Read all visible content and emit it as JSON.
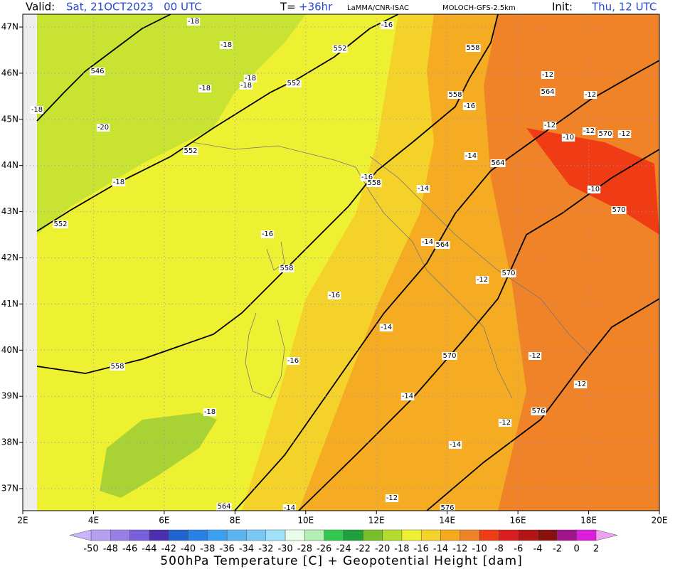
{
  "header": {
    "valid_label": "Valid:",
    "valid_time": "Sat, 21OCT2023   00 UTC",
    "lead_label": "T=",
    "lead": "+36hr",
    "institution": "LaMMA/CNR-ISAC",
    "model": "MOLOCH-GFS-2.5km",
    "init_label": "Init:",
    "init_time": "Thu, 12 UTC"
  },
  "map": {
    "lon_labels": [
      "2E",
      "4E",
      "6E",
      "8E",
      "10E",
      "12E",
      "14E",
      "16E",
      "18E",
      "20E"
    ],
    "lat_labels": [
      "47N",
      "46N",
      "45N",
      "44N",
      "43N",
      "42N",
      "41N",
      "40N",
      "39N",
      "38N",
      "37N"
    ],
    "contour_labels": [
      "-18",
      "-18",
      "-18",
      "-18",
      "-18",
      "546",
      "-18",
      "-20",
      "552",
      "-18",
      "552",
      "-16",
      "552",
      "558",
      "552",
      "558",
      "-16",
      "-14",
      "564",
      "-16",
      "558",
      "-14",
      "-16",
      "-14",
      "564",
      "558",
      "-16",
      "-12",
      "570",
      "-14",
      "570",
      "-12",
      "-16",
      "558",
      "-12",
      "-14",
      "-18",
      "576",
      "-12",
      "-14",
      "-12",
      "564",
      "-14",
      "576",
      "-12",
      "564",
      "-12",
      "-12",
      "-10",
      "-12",
      "570",
      "-12",
      "-10",
      "570"
    ]
  },
  "colorbar": {
    "title": "500hPa Temperature [C] + Geopotential Height [dam]",
    "ticks": [
      -50,
      -48,
      -46,
      -44,
      -42,
      -40,
      -38,
      -36,
      -34,
      -32,
      -30,
      -28,
      -26,
      -24,
      -22,
      -20,
      -18,
      -16,
      -14,
      -12,
      -10,
      -8,
      -6,
      -4,
      -2,
      0,
      2
    ],
    "colors": [
      "#b4a0f0",
      "#9680e6",
      "#7860dc",
      "#4b2fb0",
      "#1e64d2",
      "#2882e6",
      "#3ca0f0",
      "#5ab4f0",
      "#78c8f5",
      "#a0e1fa",
      "#e6ffe6",
      "#b4f0b4",
      "#32c850",
      "#1ea03c",
      "#78be28",
      "#b4dc2d",
      "#eef032",
      "#f5d22a",
      "#f5aa1e",
      "#f08228",
      "#f03c14",
      "#dc1e1e",
      "#b41414",
      "#8c0f0f",
      "#a0148c",
      "#dc1edc"
    ],
    "under_color": "#c8b4ff",
    "over_color": "#f0a0f0"
  }
}
